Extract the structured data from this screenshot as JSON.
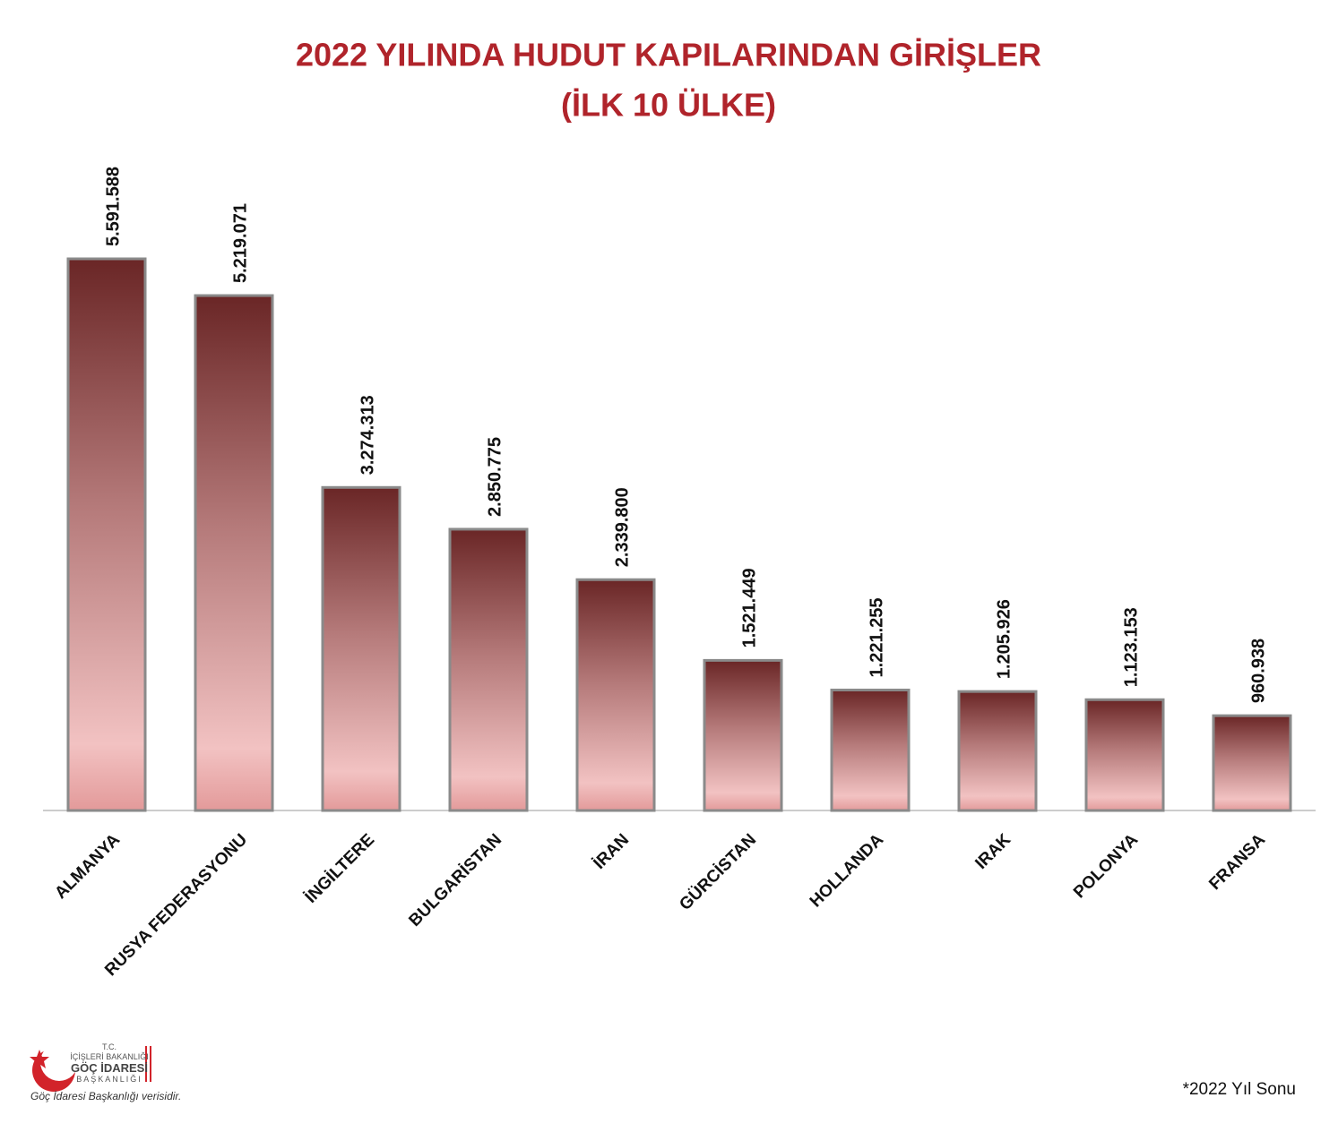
{
  "chart_data": {
    "type": "bar",
    "title": "2022 YILINDA HUDUT KAPILARINDAN GİRİŞLER",
    "subtitle": "(İLK 10 ÜLKE)",
    "categories": [
      "ALMANYA",
      "RUSYA FEDERASYONU",
      "İNGİLTERE",
      "BULGARİSTAN",
      "İRAN",
      "GÜRCİSTAN",
      "HOLLANDA",
      "IRAK",
      "POLONYA",
      "FRANSA"
    ],
    "values": [
      5591588,
      5219071,
      3274313,
      2850775,
      2339800,
      1521449,
      1221255,
      1205926,
      1123153,
      960938
    ],
    "value_labels": [
      "5.591.588",
      "5.219.071",
      "3.274.313",
      "2.850.775",
      "2.339.800",
      "1.521.449",
      "1.221.255",
      "1.205.926",
      "1.123.153",
      "960.938"
    ],
    "color": "#7a2c2c",
    "logo": {
      "line1": "T.C.",
      "line2": "İÇİŞLERİ BAKANLIĞI",
      "line3": "GÖÇ İDARESİ",
      "line4": "BAŞKANLIĞI"
    },
    "source": "Göç İdaresi Başkanlığı verisidir.",
    "note": "*2022 Yıl Sonu"
  }
}
